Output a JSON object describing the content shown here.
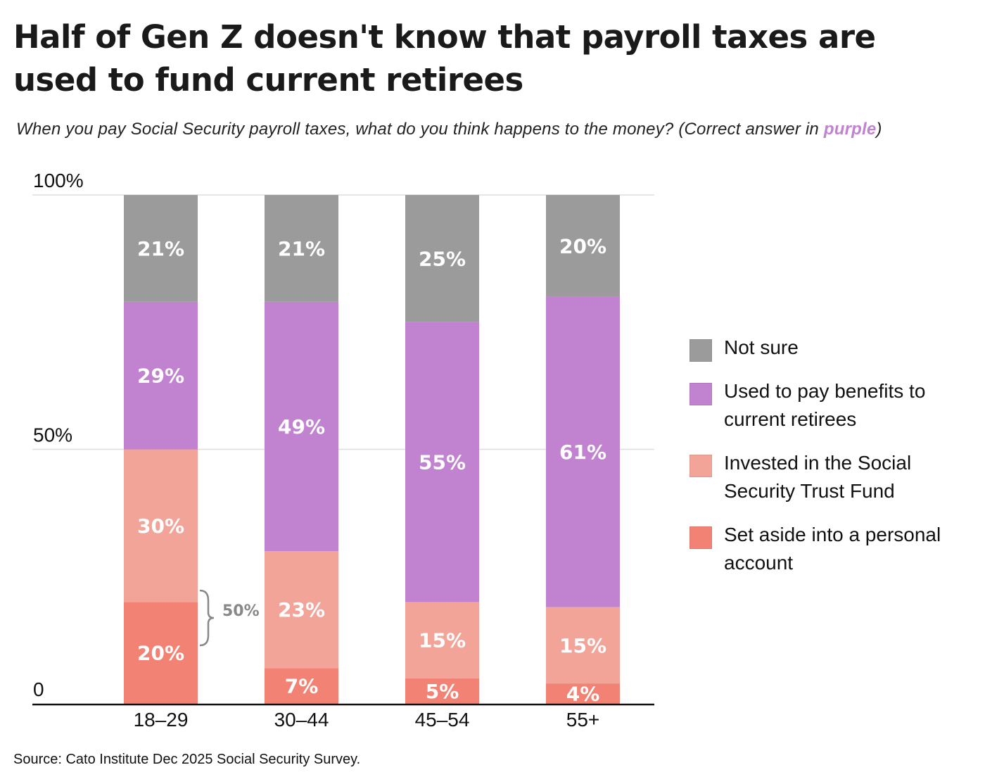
{
  "title": "Half of Gen Z doesn't know that payroll taxes are used to fund current retirees",
  "subtitle": {
    "prefix": "When you pay Social Security payroll taxes, what do you think happens to the money? (Correct answer in ",
    "highlight": "purple",
    "suffix": ")"
  },
  "source": "Source: Cato Institute Dec 2025 Social Security Survey.",
  "chart_data": {
    "type": "bar",
    "stacked": true,
    "title": "Half of Gen Z doesn't know that payroll taxes are used to fund current retirees",
    "xlabel": "",
    "ylabel": "",
    "ylim": [
      0,
      100
    ],
    "yticks": [
      {
        "value": 0,
        "label": "0"
      },
      {
        "value": 50,
        "label": "50%"
      },
      {
        "value": 100,
        "label": "100%"
      }
    ],
    "grid": true,
    "legend_position": "right",
    "categories": [
      "18–29",
      "30–44",
      "45–54",
      "55+"
    ],
    "series": [
      {
        "name": "Set aside into a personal account",
        "color": "#f28374",
        "values": [
          20,
          7,
          5,
          4
        ],
        "labels": [
          "20%",
          "7%",
          "5%",
          "4%"
        ]
      },
      {
        "name": "Invested in the Social Security Trust Fund",
        "color": "#f3a498",
        "values": [
          30,
          23,
          15,
          15
        ],
        "labels": [
          "30%",
          "23%",
          "15%",
          "15%"
        ]
      },
      {
        "name": "Used to pay benefits to current retirees",
        "color": "#c182cf",
        "values": [
          29,
          49,
          55,
          61
        ],
        "labels": [
          "29%",
          "49%",
          "55%",
          "61%"
        ]
      },
      {
        "name": "Not sure",
        "color": "#9b9b9b",
        "values": [
          21,
          21,
          25,
          20
        ],
        "labels": [
          "21%",
          "21%",
          "25%",
          "20%"
        ]
      }
    ],
    "annotations": [
      {
        "category": "18–29",
        "text": "50%",
        "type": "bracket",
        "color": "#888888"
      }
    ]
  }
}
